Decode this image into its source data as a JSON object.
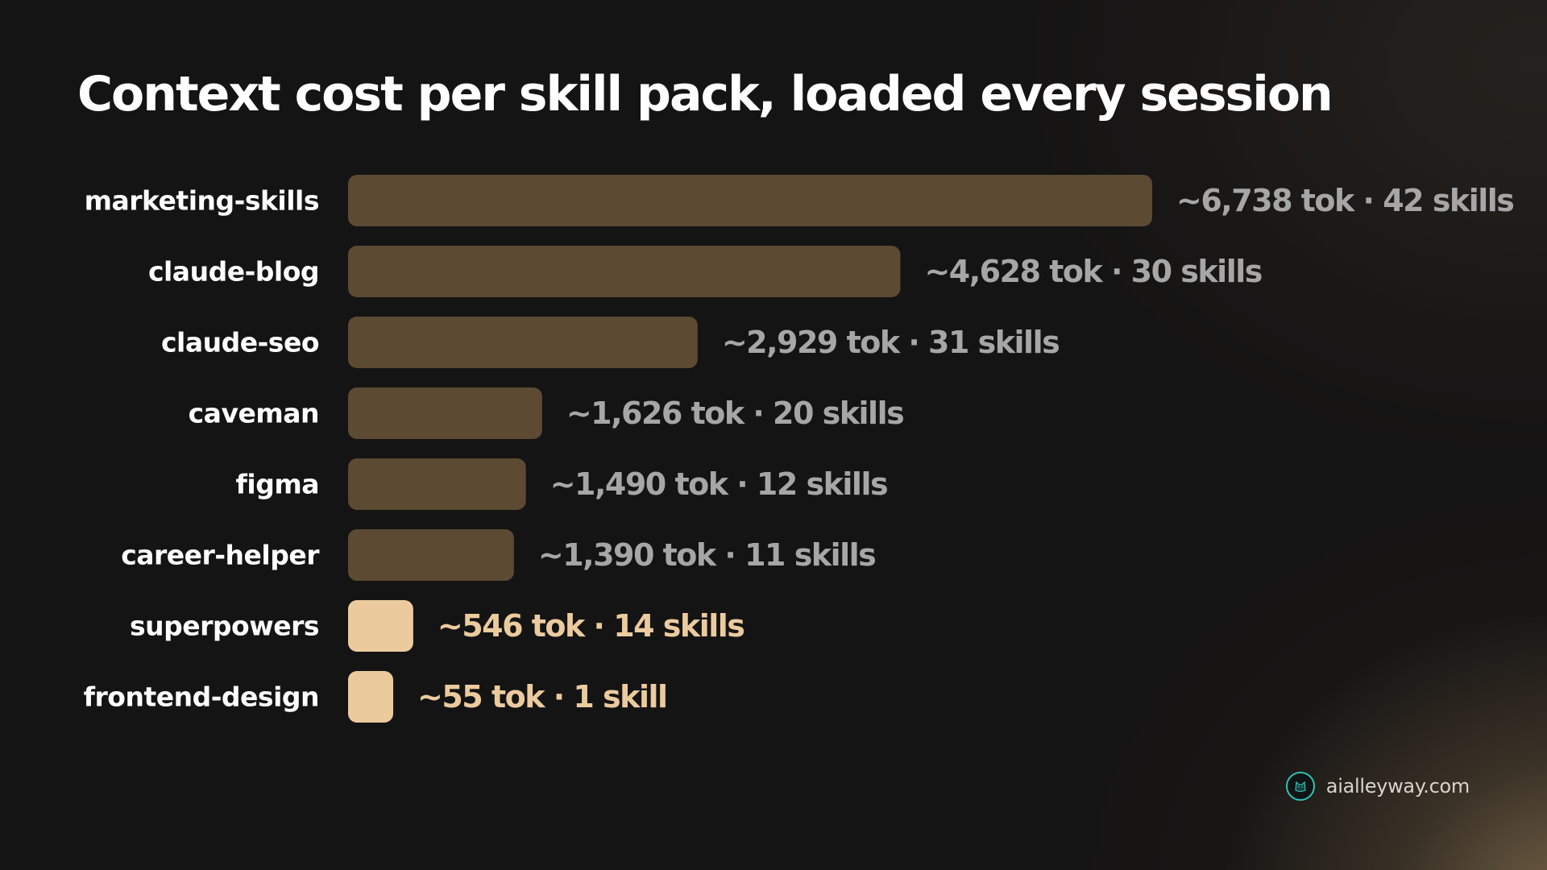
{
  "chart_data": {
    "type": "bar",
    "orientation": "horizontal",
    "title": "Context cost per skill pack, loaded every session",
    "categories": [
      "marketing-skills",
      "claude-blog",
      "claude-seo",
      "caveman",
      "figma",
      "career-helper",
      "superpowers",
      "frontend-design"
    ],
    "values": [
      6738,
      4628,
      2929,
      1626,
      1490,
      1390,
      546,
      55
    ],
    "skills": [
      42,
      30,
      31,
      20,
      12,
      11,
      14,
      1
    ],
    "value_labels": [
      "~6,738 tok · 42 skills",
      "~4,628 tok · 30 skills",
      "~2,929 tok · 31 skills",
      "~1,626 tok · 20 skills",
      "~1,490 tok · 12 skills",
      "~1,390 tok · 11 skills",
      "~546 tok · 14 skills",
      "~55 tok · 1 skill"
    ],
    "highlighted": [
      false,
      false,
      false,
      false,
      false,
      false,
      true,
      true
    ],
    "colors": {
      "bar": "#5c4a33",
      "bar_highlight": "#ebcb9e",
      "label": "#a6a6a6",
      "label_highlight": "#ebcb9e",
      "category_label": "#ffffff"
    },
    "xlabel": "",
    "ylabel": "",
    "grid": false,
    "legend": "none"
  },
  "footer": {
    "brand_icon": "alley-cat-logo-icon",
    "brand_text": "aialleyway.com"
  }
}
